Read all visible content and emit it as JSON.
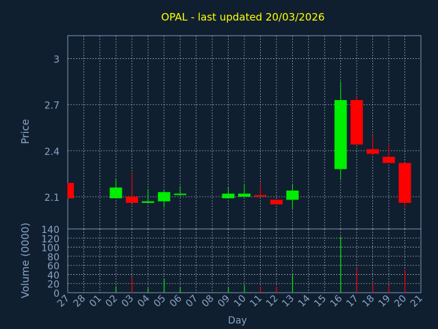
{
  "colors": {
    "background": "#0f1f30",
    "frame": "#7d9ab8",
    "grid": "#c8d2dc",
    "title": "#ffff00",
    "axis_text": "#8aa4c4",
    "up": "#00ee00",
    "down": "#ff0000"
  },
  "chart_data": [
    {
      "type": "candlestick",
      "title": "OPAL - last updated 20/03/2026",
      "ylabel": "Price",
      "xlabel": "",
      "grid": true,
      "ylim": [
        1.89,
        3.15
      ],
      "yticks": [
        2.1,
        2.4,
        2.7,
        3
      ],
      "ytick_labels": [
        "2.1",
        "2.4",
        "2.7",
        "3"
      ],
      "categories": [
        "27",
        "28",
        "01",
        "02",
        "03",
        "04",
        "05",
        "06",
        "07",
        "08",
        "09",
        "10",
        "11",
        "12",
        "13",
        "14",
        "15",
        "16",
        "17",
        "18",
        "19",
        "20",
        "21"
      ],
      "candles": [
        {
          "day": "27",
          "open": 2.19,
          "close": 2.09,
          "high": 2.19,
          "low": 2.09
        },
        {
          "day": "02",
          "open": 2.09,
          "close": 2.16,
          "high": 2.22,
          "low": 2.09
        },
        {
          "day": "03",
          "open": 2.1,
          "close": 2.06,
          "high": 2.26,
          "low": 2.06
        },
        {
          "day": "04",
          "open": 2.06,
          "close": 2.07,
          "high": 2.15,
          "low": 2.06
        },
        {
          "day": "05",
          "open": 2.07,
          "close": 2.13,
          "high": 2.14,
          "low": 2.03
        },
        {
          "day": "06",
          "open": 2.12,
          "close": 2.12,
          "high": 2.17,
          "low": 2.11
        },
        {
          "day": "09",
          "open": 2.09,
          "close": 2.12,
          "high": 2.16,
          "low": 2.09
        },
        {
          "day": "10",
          "open": 2.1,
          "close": 2.12,
          "high": 2.18,
          "low": 2.1
        },
        {
          "day": "11",
          "open": 2.11,
          "close": 2.1,
          "high": 2.19,
          "low": 2.1
        },
        {
          "day": "12",
          "open": 2.08,
          "close": 2.05,
          "high": 2.08,
          "low": 2.05
        },
        {
          "day": "13",
          "open": 2.08,
          "close": 2.14,
          "high": 2.18,
          "low": 2.02
        },
        {
          "day": "16",
          "open": 2.28,
          "close": 2.73,
          "high": 2.85,
          "low": 2.21
        },
        {
          "day": "17",
          "open": 2.73,
          "close": 2.44,
          "high": 2.76,
          "low": 2.44
        },
        {
          "day": "18",
          "open": 2.41,
          "close": 2.38,
          "high": 2.5,
          "low": 2.37
        },
        {
          "day": "19",
          "open": 2.36,
          "close": 2.32,
          "high": 2.45,
          "low": 2.32
        },
        {
          "day": "20",
          "open": 2.32,
          "close": 2.06,
          "high": 2.32,
          "low": 2.03
        }
      ]
    },
    {
      "type": "bar",
      "ylabel": "Volume (0000)",
      "xlabel": "Day",
      "grid": true,
      "ylim": [
        0,
        140
      ],
      "yticks": [
        0,
        20,
        40,
        60,
        80,
        100,
        120,
        140
      ],
      "ytick_labels": [
        "0",
        "20",
        "40",
        "60",
        "80",
        "100",
        "120",
        "140"
      ],
      "categories": [
        "27",
        "28",
        "01",
        "02",
        "03",
        "04",
        "05",
        "06",
        "07",
        "08",
        "09",
        "10",
        "11",
        "12",
        "13",
        "14",
        "15",
        "16",
        "17",
        "18",
        "19",
        "20",
        "21"
      ],
      "bars": [
        {
          "day": "27",
          "value": 1,
          "dir": "down"
        },
        {
          "day": "02",
          "value": 14,
          "dir": "up"
        },
        {
          "day": "03",
          "value": 34,
          "dir": "down"
        },
        {
          "day": "04",
          "value": 10,
          "dir": "up"
        },
        {
          "day": "05",
          "value": 30,
          "dir": "up"
        },
        {
          "day": "06",
          "value": 12,
          "dir": "up"
        },
        {
          "day": "09",
          "value": 12,
          "dir": "up"
        },
        {
          "day": "10",
          "value": 16,
          "dir": "up"
        },
        {
          "day": "11",
          "value": 14,
          "dir": "down"
        },
        {
          "day": "12",
          "value": 14,
          "dir": "down"
        },
        {
          "day": "13",
          "value": 40,
          "dir": "up"
        },
        {
          "day": "16",
          "value": 123,
          "dir": "up"
        },
        {
          "day": "17",
          "value": 53,
          "dir": "down"
        },
        {
          "day": "18",
          "value": 20,
          "dir": "down"
        },
        {
          "day": "19",
          "value": 16,
          "dir": "down"
        },
        {
          "day": "20",
          "value": 50,
          "dir": "down"
        }
      ]
    }
  ]
}
